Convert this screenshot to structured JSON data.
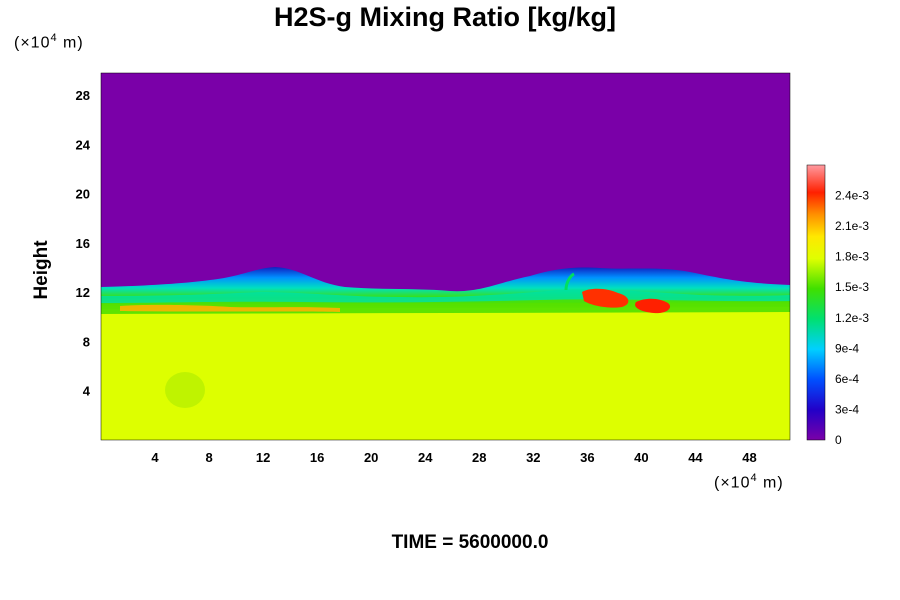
{
  "chart_data": {
    "type": "heatmap",
    "title": "H2S-g Mixing Ratio [kg/kg]",
    "ylabel": "Height",
    "y_unit": {
      "prefix": "(×10",
      "exp": "4",
      "suffix": " m)"
    },
    "x_unit": {
      "prefix": "(×10",
      "exp": "4",
      "suffix": " m)"
    },
    "xlim": [
      0,
      51
    ],
    "ylim": [
      0,
      29.8
    ],
    "x_ticks": [
      "4",
      "8",
      "12",
      "16",
      "20",
      "24",
      "28",
      "32",
      "36",
      "40",
      "44",
      "48"
    ],
    "y_ticks": [
      "4",
      "8",
      "12",
      "16",
      "20",
      "24",
      "28"
    ],
    "colorbar": {
      "range": [
        0,
        0.0027
      ],
      "tick_values": [
        0,
        0.0003,
        0.0006,
        0.0009,
        0.0012,
        0.0015,
        0.0018,
        0.0021,
        0.0024
      ],
      "tick_labels": [
        "0",
        "3e-4",
        "6e-4",
        "9e-4",
        "1.2e-3",
        "1.5e-3",
        "1.8e-3",
        "2.1e-3",
        "2.4e-3"
      ]
    },
    "field_summary": {
      "upper_region_value": 0,
      "lower_region_value": 0.00175,
      "interface_height_approx": 12.2,
      "hotspots": [
        {
          "x": 36.5,
          "y": 11.5,
          "value": 0.0023
        },
        {
          "x": 40.5,
          "y": 10.8,
          "value": 0.0024
        }
      ]
    }
  },
  "footer": {
    "time_label": "TIME = 5600000.0"
  }
}
